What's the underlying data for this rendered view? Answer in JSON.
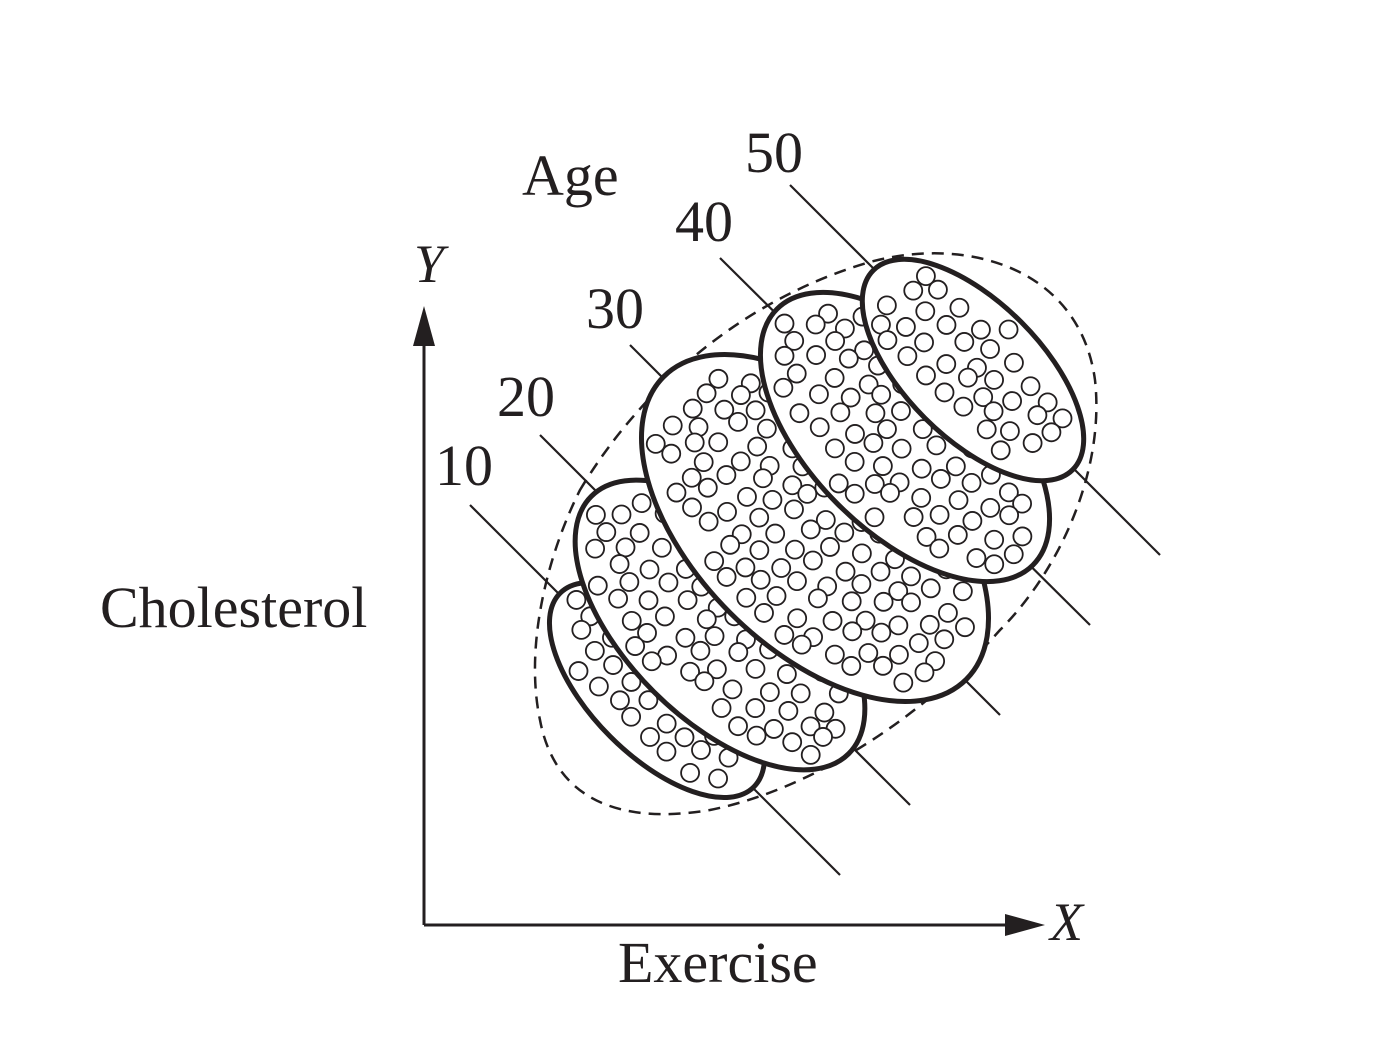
{
  "figure": {
    "group_heading": "Age",
    "y_axis_letter": "Y",
    "x_axis_letter": "X",
    "y_axis_label": "Cholesterol",
    "x_axis_label": "Exercise",
    "age_groups": [
      {
        "label": "10"
      },
      {
        "label": "20"
      },
      {
        "label": "30"
      },
      {
        "label": "40"
      },
      {
        "label": "50"
      }
    ],
    "colors": {
      "ink": "#231f20",
      "background": "#ffffff"
    }
  }
}
